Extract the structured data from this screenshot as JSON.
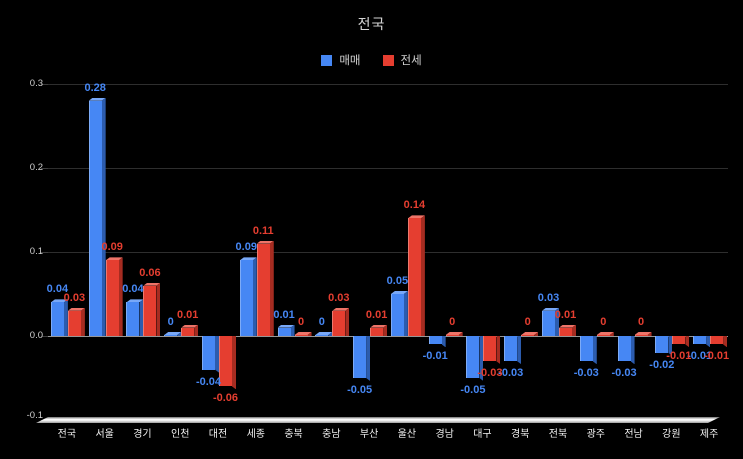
{
  "title": "전국",
  "legend": {
    "items": [
      {
        "label": "매매",
        "color": "#4687f4"
      },
      {
        "label": "전세",
        "color": "#e53e30"
      }
    ]
  },
  "y_axis": {
    "tick_labels": [
      "0.3",
      "0.2",
      "0.1",
      "0.0",
      "-0.1"
    ],
    "tick_values": [
      0.3,
      0.2,
      0.1,
      0,
      -0.1
    ]
  },
  "chart_data": {
    "type": "bar",
    "title": "전국",
    "categories": [
      "전국",
      "서울",
      "경기",
      "인천",
      "대전",
      "세종",
      "충북",
      "충남",
      "부산",
      "울산",
      "경남",
      "대구",
      "경북",
      "전북",
      "광주",
      "전남",
      "강원",
      "제주"
    ],
    "series": [
      {
        "name": "매매",
        "color": "#4687f4",
        "color_dark": "#2c5cae",
        "color_light": "#78a8f8",
        "values": [
          0.04,
          0.28,
          0.04,
          0,
          -0.04,
          0.09,
          0.01,
          0,
          -0.05,
          0.05,
          -0.01,
          -0.05,
          -0.03,
          0.03,
          -0.03,
          -0.03,
          -0.02,
          -0.01
        ]
      },
      {
        "name": "전세",
        "color": "#e53e30",
        "color_dark": "#a62c21",
        "color_light": "#ef7468",
        "values": [
          0.03,
          0.09,
          0.06,
          0.01,
          -0.06,
          0.11,
          0,
          0.03,
          0.01,
          0.14,
          0,
          -0.03,
          0,
          0.01,
          0,
          0,
          -0.01,
          -0.01
        ]
      }
    ],
    "ylim": [
      -0.1,
      0.3
    ],
    "yticks": [
      0.3,
      0.2,
      0.1,
      0,
      -0.1
    ],
    "grid": true,
    "value_labels": true,
    "bar_style": "3d",
    "legend_position": "top",
    "background": "#000000"
  }
}
